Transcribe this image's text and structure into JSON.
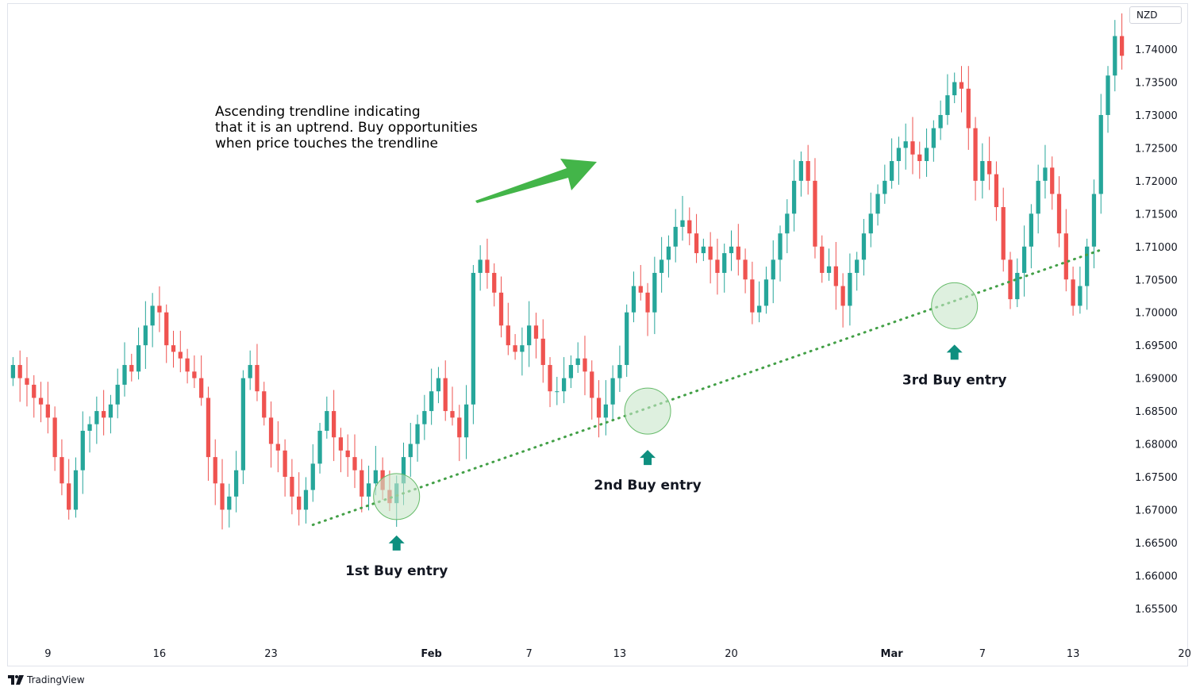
{
  "currency": "NZD",
  "watermark": "TradingView",
  "annotation_lines": [
    "Ascending trendline indicating",
    "that it is an uptrend. Buy opportunities",
    "when price touches the trendline"
  ],
  "entries": [
    {
      "label": "1st Buy entry",
      "x_index": 55,
      "price": 1.672
    },
    {
      "label": "2nd Buy entry",
      "x_index": 91,
      "price": 1.685
    },
    {
      "label": "3rd Buy entry",
      "x_index": 135,
      "price": 1.701
    }
  ],
  "colors": {
    "up": "#26a69a",
    "down": "#ef5350",
    "trendline": "#43a047",
    "arrow": "#43b549",
    "entry_arrow": "#0e8f7f",
    "circle_fill": "#c8e6c9",
    "circle_stroke": "#66bb6a"
  },
  "chart_data": {
    "type": "candlestick",
    "title": "",
    "ylim": [
      1.651,
      1.747
    ],
    "y_ticks": [
      "1.65500",
      "1.66000",
      "1.66500",
      "1.67000",
      "1.67500",
      "1.68000",
      "1.68500",
      "1.69000",
      "1.69500",
      "1.70000",
      "1.70500",
      "1.71000",
      "1.71500",
      "1.72000",
      "1.72500",
      "1.73000",
      "1.73500",
      "1.74000"
    ],
    "x_ticks": [
      {
        "label": "9",
        "index": 5,
        "bold": false
      },
      {
        "label": "16",
        "index": 21,
        "bold": false
      },
      {
        "label": "23",
        "index": 37,
        "bold": false
      },
      {
        "label": "Feb",
        "index": 60,
        "bold": true
      },
      {
        "label": "7",
        "index": 74,
        "bold": false
      },
      {
        "label": "13",
        "index": 87,
        "bold": false
      },
      {
        "label": "20",
        "index": 103,
        "bold": false
      },
      {
        "label": "Mar",
        "index": 126,
        "bold": true
      },
      {
        "label": "7",
        "index": 139,
        "bold": false
      },
      {
        "label": "13",
        "index": 152,
        "bold": false
      },
      {
        "label": "20",
        "index": 168,
        "bold": false
      }
    ],
    "trendline": {
      "start": {
        "index": 43,
        "price": 1.6677
      },
      "end": {
        "index": 156,
        "price": 1.7095
      }
    },
    "closes": [
      1.692,
      1.69,
      1.689,
      1.687,
      1.686,
      1.684,
      1.678,
      1.674,
      1.67,
      1.676,
      1.682,
      1.683,
      1.685,
      1.684,
      1.686,
      1.689,
      1.692,
      1.691,
      1.695,
      1.698,
      1.701,
      1.7,
      1.695,
      1.694,
      1.693,
      1.691,
      1.69,
      1.687,
      1.678,
      1.674,
      1.67,
      1.672,
      1.676,
      1.69,
      1.692,
      1.688,
      1.684,
      1.68,
      1.679,
      1.675,
      1.672,
      1.67,
      1.673,
      1.677,
      1.682,
      1.685,
      1.681,
      1.679,
      1.678,
      1.676,
      1.672,
      1.674,
      1.676,
      1.673,
      1.671,
      1.674,
      1.678,
      1.68,
      1.683,
      1.685,
      1.688,
      1.69,
      1.685,
      1.684,
      1.681,
      1.686,
      1.706,
      1.708,
      1.706,
      1.703,
      1.698,
      1.695,
      1.694,
      1.695,
      1.698,
      1.696,
      1.692,
      1.688,
      1.688,
      1.69,
      1.692,
      1.693,
      1.691,
      1.687,
      1.684,
      1.686,
      1.69,
      1.692,
      1.7,
      1.704,
      1.703,
      1.7,
      1.706,
      1.708,
      1.71,
      1.713,
      1.714,
      1.712,
      1.709,
      1.71,
      1.708,
      1.706,
      1.709,
      1.71,
      1.708,
      1.705,
      1.7,
      1.701,
      1.705,
      1.708,
      1.712,
      1.715,
      1.72,
      1.723,
      1.72,
      1.71,
      1.706,
      1.707,
      1.704,
      1.701,
      1.706,
      1.708,
      1.712,
      1.715,
      1.718,
      1.72,
      1.723,
      1.725,
      1.726,
      1.724,
      1.723,
      1.725,
      1.728,
      1.73,
      1.733,
      1.735,
      1.734,
      1.728,
      1.72,
      1.723,
      1.721,
      1.716,
      1.708,
      1.702,
      1.706,
      1.71,
      1.715,
      1.72,
      1.722,
      1.718,
      1.712,
      1.705,
      1.701,
      1.704,
      1.71,
      1.718,
      1.73,
      1.736,
      1.742,
      1.739
    ]
  }
}
